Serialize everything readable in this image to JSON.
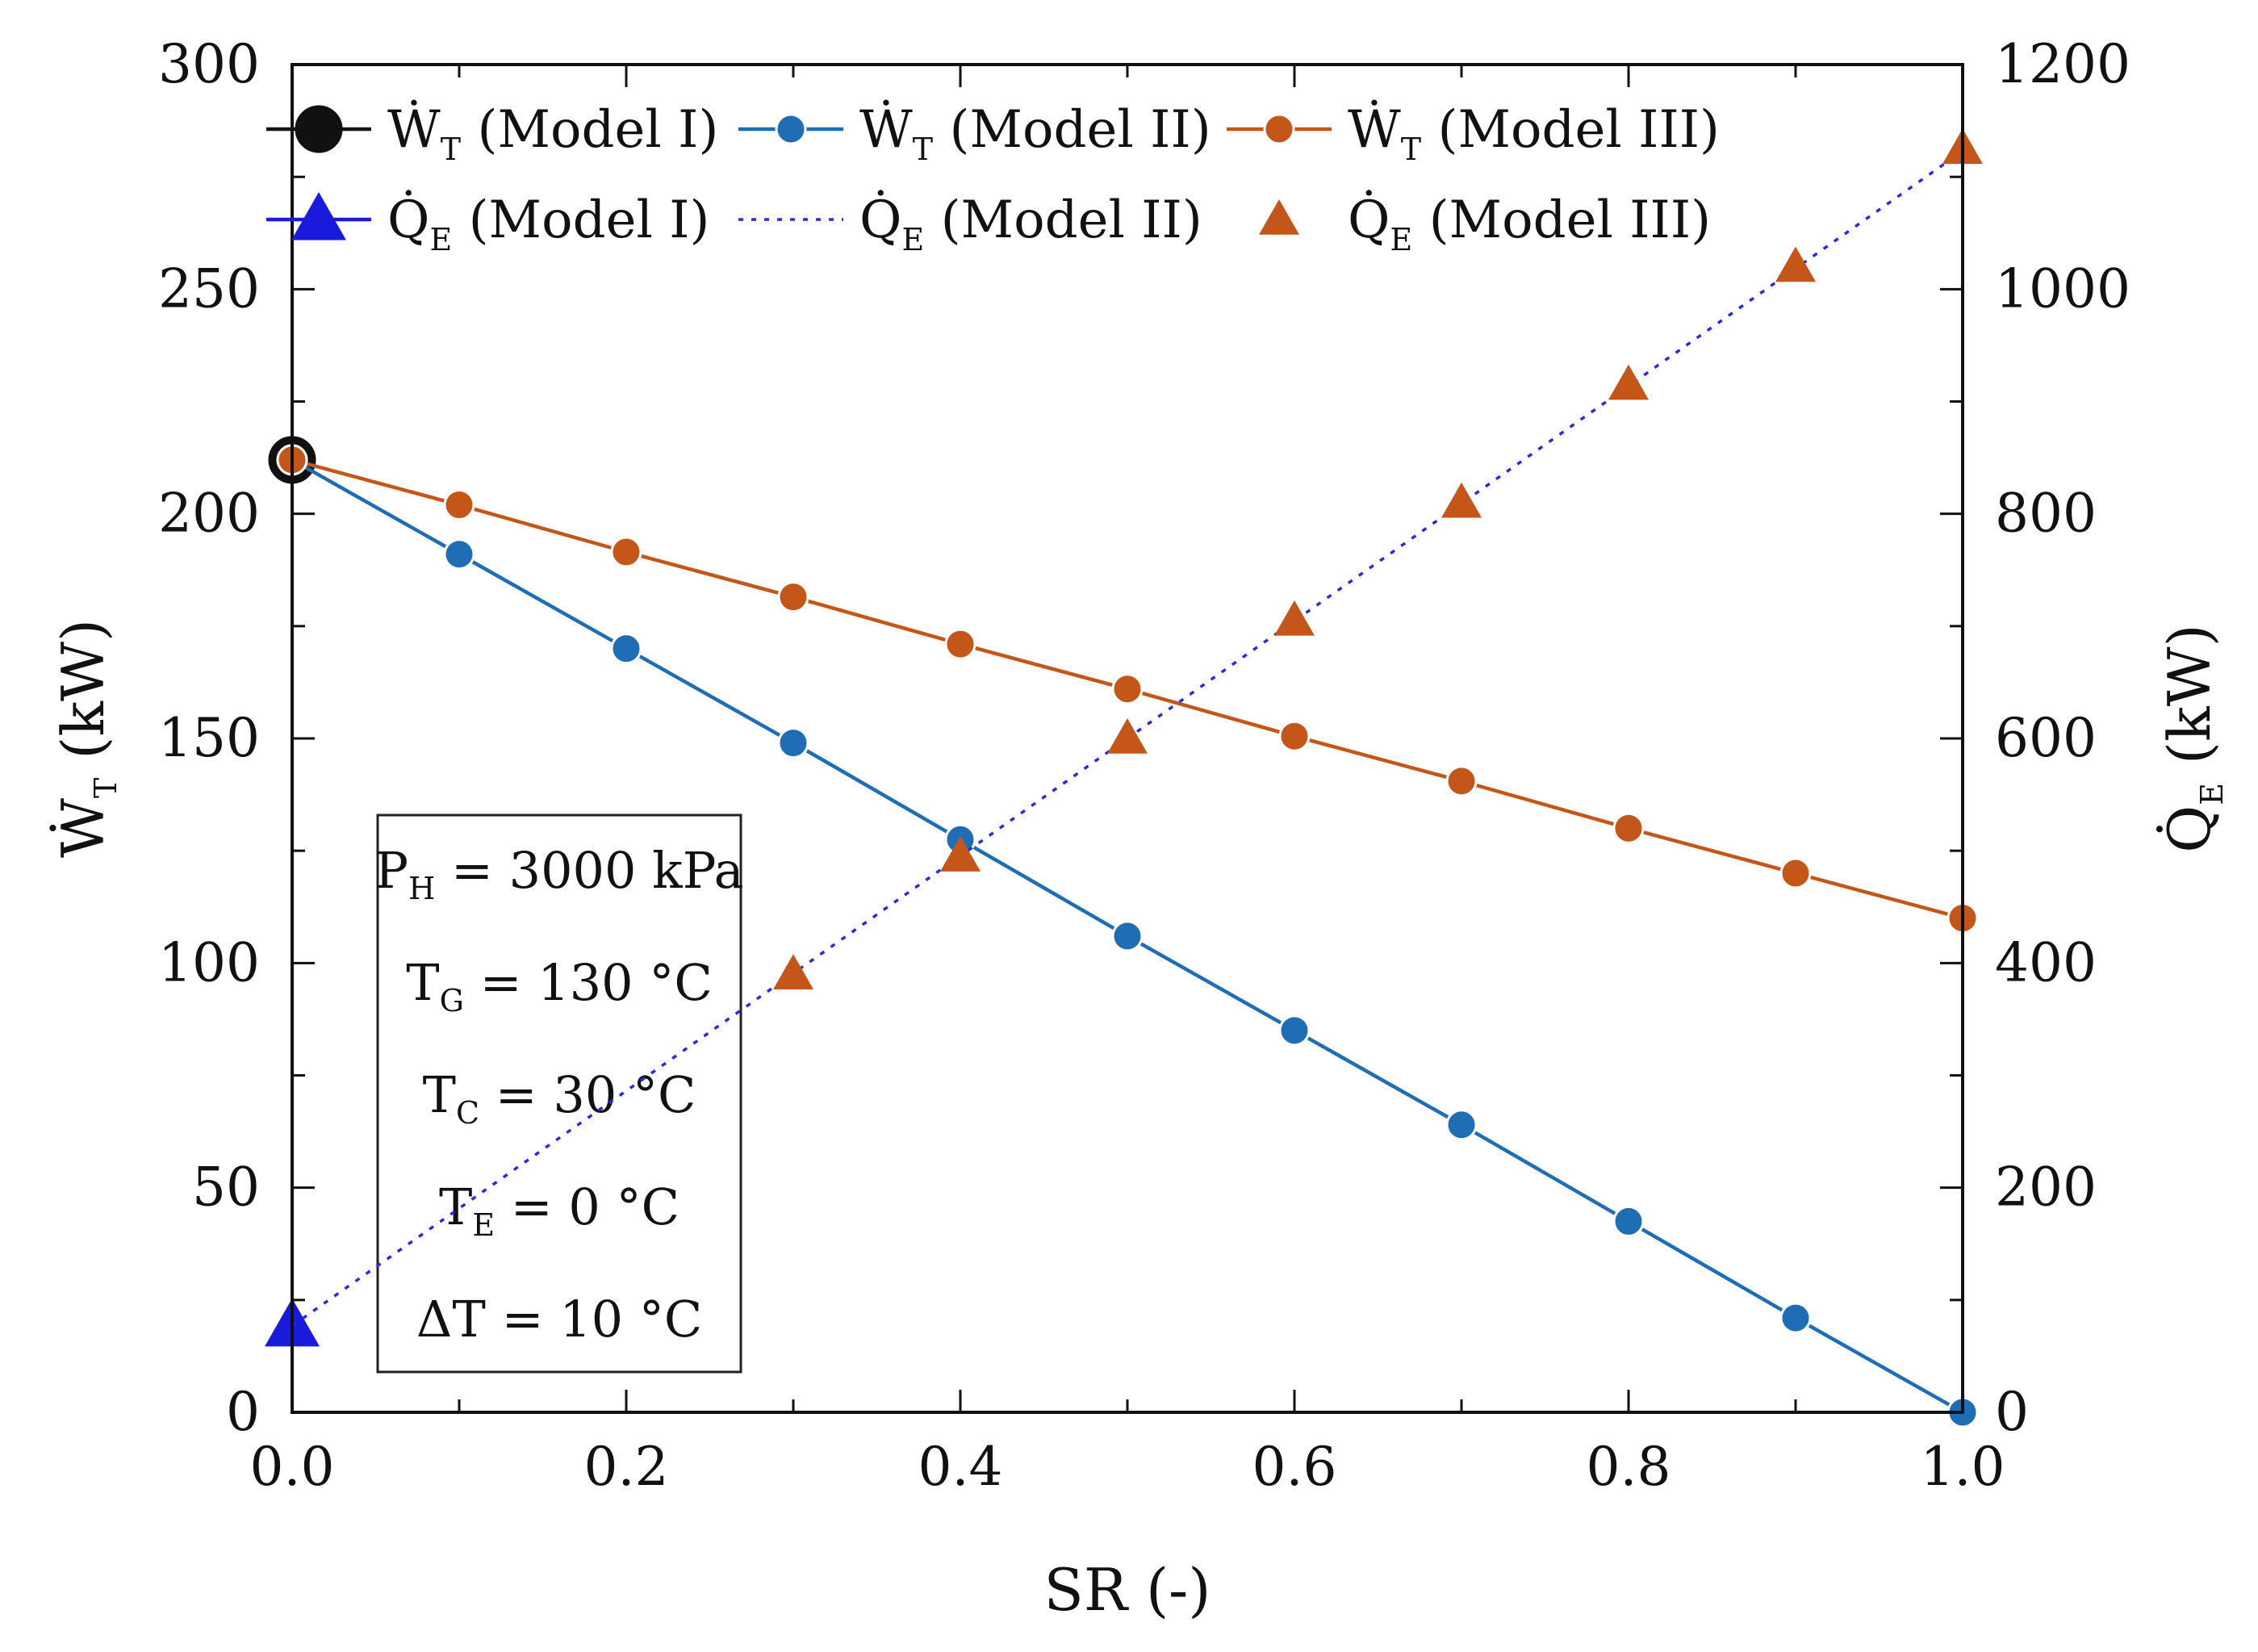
{
  "chart_data": {
    "type": "line",
    "x": [
      0.0,
      0.1,
      0.2,
      0.3,
      0.4,
      0.5,
      0.6,
      0.7,
      0.8,
      0.9,
      1.0
    ],
    "xlabel": "SR (-)",
    "xlim": [
      0.0,
      1.0
    ],
    "x_ticks": [
      "0.0",
      "0.2",
      "0.4",
      "0.6",
      "0.8",
      "1.0"
    ],
    "ylabel_left": {
      "main": "Ẇ",
      "sub": "T",
      "unit": "(kW)"
    },
    "ylim_left": [
      0,
      300
    ],
    "y_ticks_left": [
      "0",
      "50",
      "100",
      "150",
      "200",
      "250",
      "300"
    ],
    "ylabel_right": {
      "main": "Q̇",
      "sub": "E",
      "unit": "(kW)"
    },
    "ylim_right": [
      0,
      1200
    ],
    "y_ticks_right": [
      "0",
      "200",
      "400",
      "600",
      "800",
      "1000",
      "1200"
    ],
    "grid": false,
    "legend_position": "top",
    "series": [
      {
        "name": "Ẇ",
        "sub": "T",
        "model": "(Model I)",
        "axis": "left",
        "color": "#111111",
        "marker": "circle-large",
        "x": [
          0.0
        ],
        "values": [
          212
        ]
      },
      {
        "name": "Ẇ",
        "sub": "T",
        "model": "(Model II)",
        "axis": "left",
        "color": "#1f6db5",
        "marker": "circle",
        "x": [
          0.0,
          0.1,
          0.2,
          0.3,
          0.4,
          0.5,
          0.6,
          0.7,
          0.8,
          0.9,
          1.0
        ],
        "values": [
          212,
          191,
          170,
          149,
          127.5,
          106,
          85,
          64,
          42.5,
          21,
          0
        ]
      },
      {
        "name": "Ẇ",
        "sub": "T",
        "model": "(Model III)",
        "axis": "left",
        "color": "#c5561a",
        "marker": "circle",
        "x": [
          0.0,
          0.1,
          0.2,
          0.3,
          0.4,
          0.5,
          0.6,
          0.7,
          0.8,
          0.9,
          1.0
        ],
        "values": [
          212,
          202,
          191.5,
          181.5,
          171,
          161,
          150.5,
          140.5,
          130,
          120,
          110
        ]
      },
      {
        "name": "Q̇",
        "sub": "E",
        "model": "(Model I)",
        "axis": "right",
        "color": "#1a1adc",
        "marker": "triangle-large",
        "x": [
          0.0
        ],
        "values": [
          77
        ]
      },
      {
        "name": "Q̇",
        "sub": "E",
        "model": "(Model II)",
        "axis": "right",
        "color": "#2a2ae0",
        "marker": "none",
        "line": "dotted",
        "x": [
          0.0,
          1.0
        ],
        "values": [
          77,
          1123
        ]
      },
      {
        "name": "Q̇",
        "sub": "E",
        "model": "(Model III)",
        "axis": "right",
        "color": "#c5561a",
        "marker": "triangle",
        "line": "none",
        "x": [
          0.3,
          0.4,
          0.5,
          0.6,
          0.7,
          0.8,
          0.9,
          1.0
        ],
        "values": [
          390,
          495,
          600,
          705,
          810,
          915,
          1020,
          1125
        ]
      }
    ],
    "annotation_box": [
      {
        "main": "P",
        "sub": "H",
        "rest": " = 3000 kPa"
      },
      {
        "main": "T",
        "sub": "G",
        "rest": " = 130 °C"
      },
      {
        "main": "T",
        "sub": "C",
        "rest": " = 30 °C"
      },
      {
        "main": "T",
        "sub": "E",
        "rest": " = 0 °C"
      },
      {
        "main": "ΔT",
        "sub": "",
        "rest": " = 10 °C"
      }
    ]
  }
}
